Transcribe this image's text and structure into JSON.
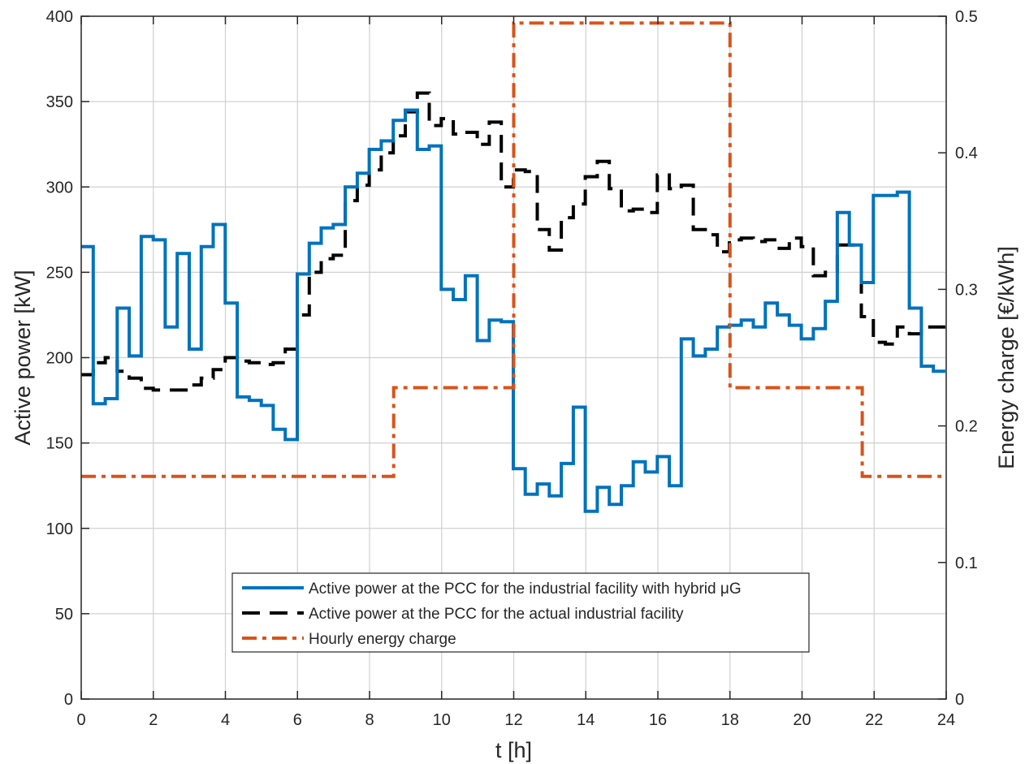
{
  "chart_data": {
    "type": "line",
    "xlabel": "t [h]",
    "ylabel_left": "Active power [kW]",
    "ylabel_right": "Energy charge [€/kWh]",
    "xlim": [
      0,
      24
    ],
    "ylim_left": [
      0,
      400
    ],
    "ylim_right": [
      0,
      0.5
    ],
    "x_ticks": [
      0,
      2,
      4,
      6,
      8,
      10,
      12,
      14,
      16,
      18,
      20,
      22,
      24
    ],
    "y_ticks_left": [
      0,
      50,
      100,
      150,
      200,
      250,
      300,
      350,
      400
    ],
    "y_ticks_right": [
      0,
      0.1,
      0.2,
      0.3,
      0.4,
      0.5
    ],
    "grid": true,
    "legend_position": "bottom-center",
    "step_width_h": 0.333,
    "series": [
      {
        "name": "Active power at the PCC for the industrial facility with hybrid μG",
        "style": "solid",
        "color": "#0072BD",
        "axis": "left",
        "values": [
          265,
          173,
          176,
          229,
          201,
          271,
          269,
          218,
          261,
          205,
          265,
          278,
          232,
          177,
          175,
          172,
          158,
          152,
          249,
          267,
          276,
          278,
          300,
          308,
          322,
          327,
          339,
          345,
          322,
          324,
          240,
          234,
          248,
          210,
          222,
          221,
          135,
          120,
          126,
          119,
          138,
          171,
          110,
          124,
          114,
          125,
          139,
          133,
          142,
          125,
          211,
          201,
          205,
          218,
          219,
          222,
          218,
          232,
          225,
          219,
          211,
          217,
          233,
          285,
          266,
          244,
          295,
          295,
          297,
          229,
          195,
          192
        ]
      },
      {
        "name": "Active power at the PCC for the actual industrial facility",
        "style": "dashed",
        "color": "#000000",
        "axis": "left",
        "values": [
          190,
          197,
          200,
          192,
          188,
          182,
          181,
          181,
          181,
          184,
          188,
          193,
          200,
          198,
          197,
          196,
          197,
          205,
          225,
          250,
          258,
          260,
          292,
          301,
          310,
          320,
          330,
          344,
          355,
          336,
          340,
          331,
          332,
          325,
          338,
          300,
          310,
          309,
          275,
          263,
          282,
          290,
          306,
          315,
          299,
          286,
          287,
          285,
          307,
          299,
          301,
          275,
          272,
          262,
          269,
          270,
          268,
          269,
          264,
          270,
          265,
          248,
          250,
          266,
          266,
          224,
          209,
          208,
          218,
          214,
          218,
          218
        ]
      },
      {
        "name": "Hourly energy charge",
        "style": "dash-dot",
        "color": "#D95319",
        "axis": "right",
        "steps": [
          {
            "from": 0,
            "to": 8.67,
            "value": 0.163
          },
          {
            "from": 8.67,
            "to": 12,
            "value": 0.228
          },
          {
            "from": 12,
            "to": 18,
            "value": 0.495
          },
          {
            "from": 18,
            "to": 21.67,
            "value": 0.228
          },
          {
            "from": 21.67,
            "to": 24,
            "value": 0.163
          }
        ]
      }
    ]
  }
}
